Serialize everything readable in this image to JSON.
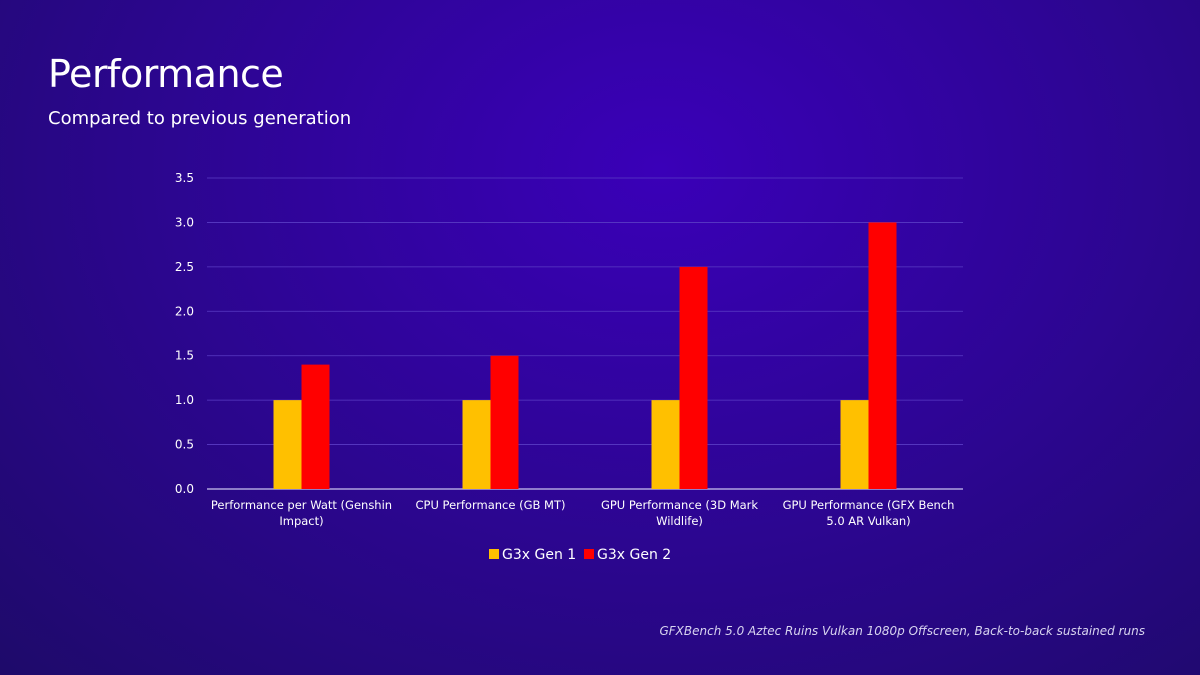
{
  "title": "Performance",
  "subtitle": "Compared to previous generation",
  "footnote": "GFXBench 5.0 Aztec Ruins Vulkan 1080p Offscreen, Back-to-back sustained runs",
  "chart_data": {
    "type": "bar",
    "categories": [
      [
        "Performance per Watt (Genshin",
        "Impact)"
      ],
      [
        "CPU Performance (GB MT)"
      ],
      [
        "GPU Performance (3D Mark",
        "Wildlife)"
      ],
      [
        "GPU Performance (GFX Bench",
        "5.0 AR Vulkan)"
      ]
    ],
    "series": [
      {
        "name": "G3x Gen 1",
        "color": "#ffc000",
        "values": [
          1.0,
          1.0,
          1.0,
          1.0
        ]
      },
      {
        "name": "G3x Gen 2",
        "color": "#ff0000",
        "values": [
          1.4,
          1.5,
          2.5,
          3.0
        ]
      }
    ],
    "ylim": [
      0,
      3.5
    ],
    "yticks": [
      "0.0",
      "0.5",
      "1.0",
      "1.5",
      "2.0",
      "2.5",
      "3.0",
      "3.5"
    ],
    "grid": true,
    "legend_position": "bottom-center"
  }
}
